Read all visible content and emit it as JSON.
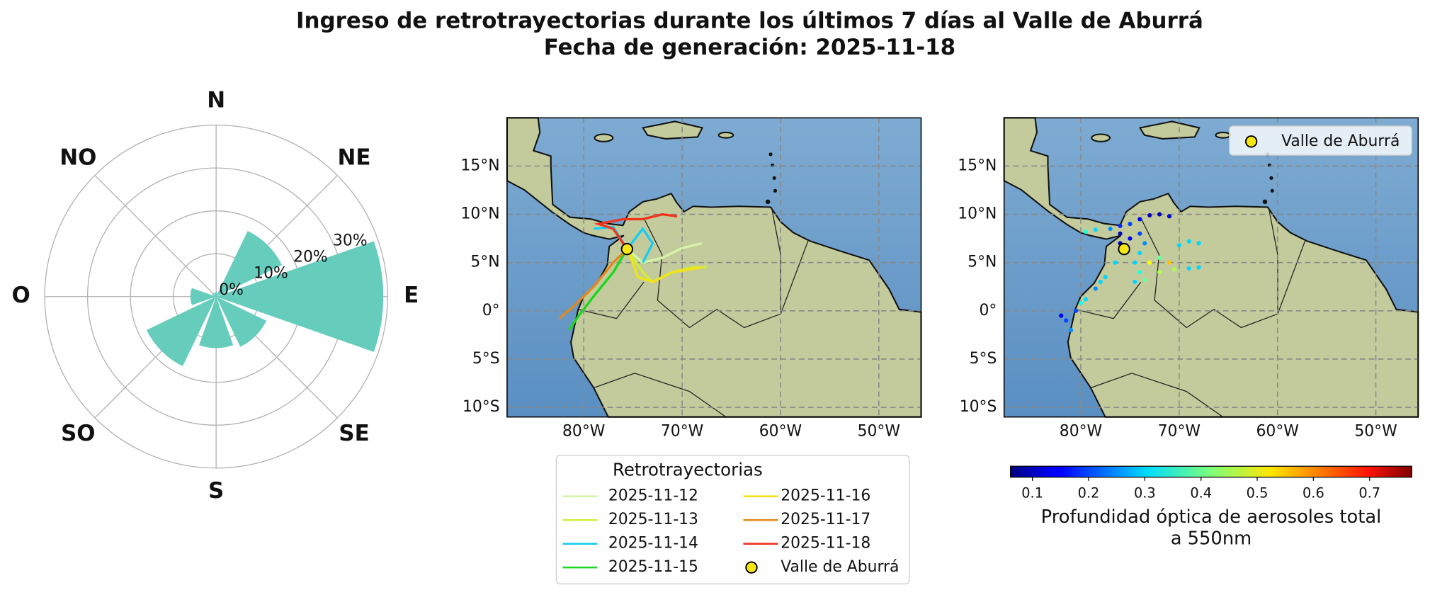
{
  "title": "Ingreso de retrotrayectorias durante los últimos 7 días al Valle de Aburrá",
  "subtitle": "Fecha de generación: 2025-11-18",
  "chart_data": [
    {
      "type": "polar-bar",
      "categories": [
        "N",
        "NE",
        "E",
        "SE",
        "S",
        "SO",
        "O",
        "NO"
      ],
      "values": [
        1,
        17,
        39,
        13,
        12,
        18,
        6,
        1
      ],
      "color": "#66cdbd",
      "rlim": [
        0,
        40
      ],
      "rticks": [
        {
          "value": 0,
          "label": "0%"
        },
        {
          "value": 10,
          "label": "10%"
        },
        {
          "value": 20,
          "label": "20%"
        },
        {
          "value": 30,
          "label": "30%"
        }
      ]
    },
    {
      "type": "map-lines",
      "xlim": [
        -87.8,
        -45.7
      ],
      "ylim": [
        -11,
        20
      ],
      "xticks": [
        {
          "value": -80,
          "label": "80°W"
        },
        {
          "value": -70,
          "label": "70°W"
        },
        {
          "value": -60,
          "label": "60°W"
        },
        {
          "value": -50,
          "label": "50°W"
        }
      ],
      "yticks": [
        {
          "value": -10,
          "label": "10°S"
        },
        {
          "value": -5,
          "label": "5°S"
        },
        {
          "value": 0,
          "label": "0°"
        },
        {
          "value": 5,
          "label": "5°N"
        },
        {
          "value": 10,
          "label": "10°N"
        },
        {
          "value": 15,
          "label": "15°N"
        }
      ],
      "grid": true,
      "legend_title": "Retrotrayectorias",
      "series": [
        {
          "name": "2025-11-12",
          "color": "#d4f5a8",
          "x": [
            -75.6,
            -74,
            -72,
            -70,
            -68
          ],
          "y": [
            6.4,
            5,
            5.5,
            6.5,
            7
          ]
        },
        {
          "name": "2025-11-13",
          "color": "#d4ec3a",
          "x": [
            -75.6,
            -74,
            -73,
            -71,
            -69,
            -67.5
          ],
          "y": [
            6.4,
            4,
            3,
            4,
            4.5,
            4.5
          ]
        },
        {
          "name": "2025-11-14",
          "color": "#17cdf0",
          "x": [
            -79,
            -77,
            -75.6,
            -74,
            -73,
            -74
          ],
          "y": [
            8.5,
            8.7,
            6.4,
            8.5,
            7,
            5
          ]
        },
        {
          "name": "2025-11-15",
          "color": "#1ed61e",
          "x": [
            -75.6,
            -77,
            -79,
            -80.5,
            -81.5
          ],
          "y": [
            6.4,
            4,
            1.5,
            -0.5,
            -2
          ]
        },
        {
          "name": "2025-11-16",
          "color": "#f2e414",
          "x": [
            -75.6,
            -75,
            -74.5,
            -73,
            -71,
            -68
          ],
          "y": [
            6.4,
            5,
            3.5,
            3,
            4,
            4.5
          ]
        },
        {
          "name": "2025-11-17",
          "color": "#e0891e",
          "x": [
            -75.6,
            -77,
            -79,
            -81,
            -82.5
          ],
          "y": [
            6.4,
            5,
            2.5,
            0.5,
            -0.8
          ]
        },
        {
          "name": "2025-11-18",
          "color": "#f0341e",
          "x": [
            -75.6,
            -77,
            -78.5,
            -76,
            -74,
            -72,
            -70.5
          ],
          "y": [
            6.4,
            8.5,
            9,
            9.5,
            9.5,
            10,
            9.8
          ]
        }
      ],
      "marker": {
        "name": "Valle de Aburrá",
        "x": -75.6,
        "y": 6.4,
        "color": "#f5e614"
      }
    },
    {
      "type": "map-scatter",
      "xlim": [
        -87.8,
        -45.7
      ],
      "ylim": [
        -11,
        20
      ],
      "xticks": [
        {
          "value": -80,
          "label": "80°W"
        },
        {
          "value": -70,
          "label": "70°W"
        },
        {
          "value": -60,
          "label": "60°W"
        },
        {
          "value": -50,
          "label": "50°W"
        }
      ],
      "yticks": [
        {
          "value": -10,
          "label": "10°S"
        },
        {
          "value": -5,
          "label": "5°S"
        },
        {
          "value": 0,
          "label": "0°"
        },
        {
          "value": 5,
          "label": "5°N"
        },
        {
          "value": 10,
          "label": "10°N"
        },
        {
          "value": 15,
          "label": "15°N"
        }
      ],
      "grid": true,
      "x": [
        -73,
        -72,
        -71,
        -74,
        -75,
        -76,
        -77,
        -78.5,
        -79.5,
        -74,
        -73.5,
        -74,
        -74.5,
        -74,
        -74.5,
        -73.5,
        -72,
        -70.5,
        -69,
        -68,
        -72,
        -70,
        -69,
        -68,
        -73,
        -71,
        -76.5,
        -77.5,
        -78.5,
        -79.5,
        -80.5,
        -81.5,
        -82,
        -81,
        -80,
        -78,
        -76,
        -75,
        -76
      ],
      "y": [
        9.9,
        10,
        9.8,
        9.5,
        9,
        8.8,
        8.5,
        8.4,
        8.2,
        8,
        7,
        6,
        5,
        4,
        3,
        3.2,
        4,
        4.3,
        4.4,
        4.5,
        5.5,
        6.8,
        7.2,
        7,
        5,
        5,
        5,
        3.5,
        2.3,
        1.2,
        0,
        -1,
        -0.5,
        -2,
        0.8,
        3,
        7,
        7.5,
        8
      ],
      "values": [
        0.1,
        0.1,
        0.12,
        0.15,
        0.2,
        0.18,
        0.25,
        0.3,
        0.35,
        0.2,
        0.25,
        0.3,
        0.3,
        0.35,
        0.3,
        0.4,
        0.45,
        0.45,
        0.3,
        0.3,
        0.4,
        0.3,
        0.3,
        0.3,
        0.5,
        0.55,
        0.3,
        0.3,
        0.25,
        0.3,
        0.2,
        0.2,
        0.15,
        0.25,
        0.35,
        0.3,
        0.1,
        0.15,
        0.1
      ],
      "clim": [
        0.061,
        0.775
      ],
      "cticks": [
        0.1,
        0.2,
        0.3,
        0.4,
        0.5,
        0.6,
        0.7
      ],
      "colorbar_label": [
        "Profundidad óptica de aerosoles total",
        "a 550nm"
      ],
      "marker": {
        "name": "Valle de Aburrá",
        "x": -75.6,
        "y": 6.4,
        "color": "#f5e614"
      }
    }
  ]
}
